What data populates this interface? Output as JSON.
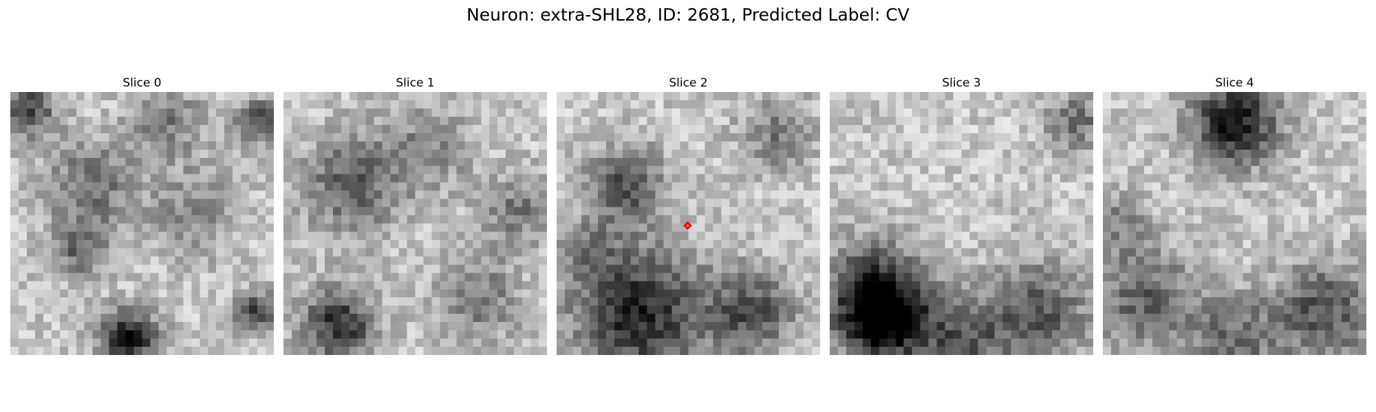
{
  "title": "Neuron: extra-SHL28, ID: 2681, Predicted Label: CV",
  "panels": [
    {
      "label": "Slice 0",
      "marker": false,
      "seed": 11
    },
    {
      "label": "Slice 1",
      "marker": false,
      "seed": 23
    },
    {
      "label": "Slice 2",
      "marker": true,
      "seed": 37
    },
    {
      "label": "Slice 3",
      "marker": false,
      "seed": 51
    },
    {
      "label": "Slice 4",
      "marker": false,
      "seed": 67
    }
  ],
  "marker_color": "#ff0000",
  "colormap": "gray"
}
